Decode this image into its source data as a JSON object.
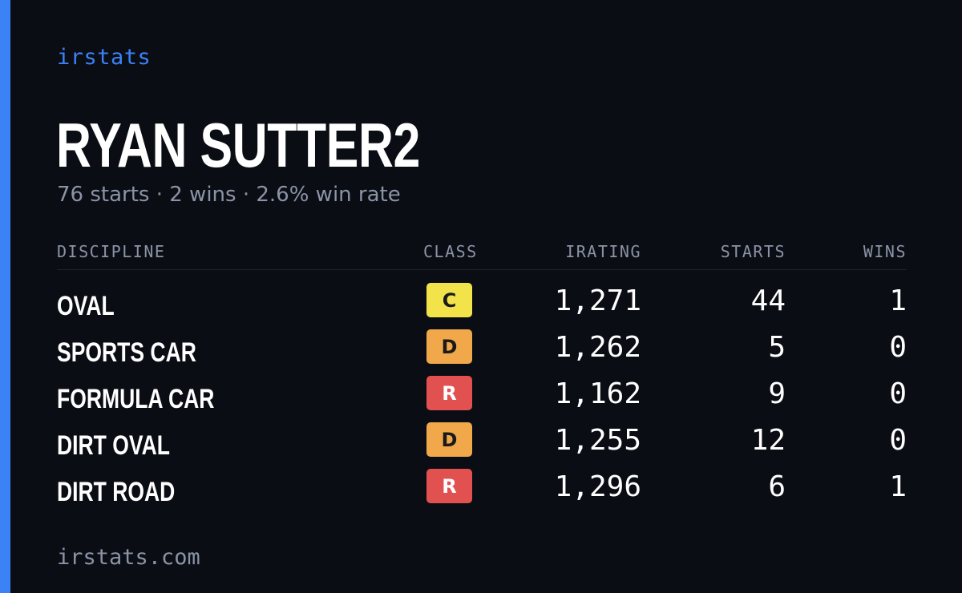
{
  "brand": "irstats",
  "driver_name": "RYAN SUTTER2",
  "subtitle": "76 starts · 2 wins · 2.6% win rate",
  "colors": {
    "accent": "#3b82f6",
    "class_C": "#f2e34b",
    "class_D": "#f0a84a",
    "class_R": "#e0514f"
  },
  "table": {
    "headers": {
      "discipline": "DISCIPLINE",
      "class": "CLASS",
      "irating": "IRATING",
      "starts": "STARTS",
      "wins": "WINS"
    },
    "rows": [
      {
        "discipline": "OVAL",
        "class": "C",
        "irating": "1,271",
        "starts": "44",
        "wins": "1"
      },
      {
        "discipline": "SPORTS CAR",
        "class": "D",
        "irating": "1,262",
        "starts": "5",
        "wins": "0"
      },
      {
        "discipline": "FORMULA CAR",
        "class": "R",
        "irating": "1,162",
        "starts": "9",
        "wins": "0"
      },
      {
        "discipline": "DIRT OVAL",
        "class": "D",
        "irating": "1,255",
        "starts": "12",
        "wins": "0"
      },
      {
        "discipline": "DIRT ROAD",
        "class": "R",
        "irating": "1,296",
        "starts": "6",
        "wins": "1"
      }
    ]
  },
  "footer": "irstats.com"
}
